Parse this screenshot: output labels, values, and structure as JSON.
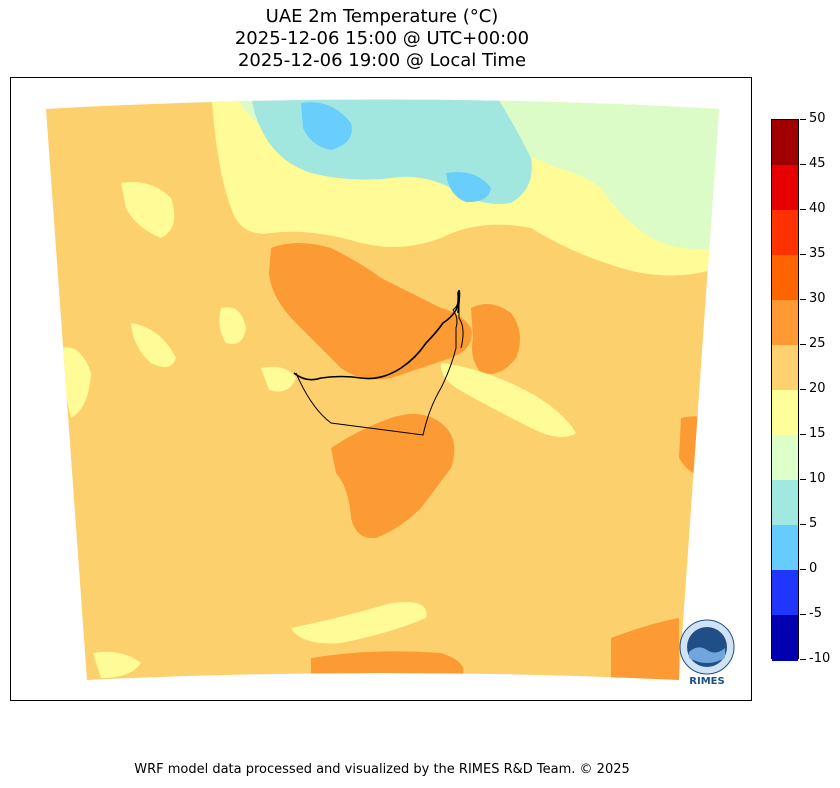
{
  "title": {
    "line1": "UAE 2m Temperature (°C)",
    "line2": "2025-12-06 15:00 @ UTC+00:00",
    "line3": "2025-12-06 19:00 @ Local Time"
  },
  "colorbar": {
    "levels": [
      50,
      45,
      40,
      35,
      30,
      25,
      20,
      15,
      10,
      5,
      0,
      -5,
      -10
    ],
    "labels": [
      "50",
      "45",
      "40",
      "35",
      "30",
      "25",
      "20",
      "15",
      "10",
      "5",
      "0",
      "-5",
      "-10"
    ],
    "colors": [
      "#a00000",
      "#e60000",
      "#ff3200",
      "#ff6400",
      "#ff9933",
      "#ffd070",
      "#ffff99",
      "#ddffc8",
      "#a0e8e0",
      "#66ccff",
      "#2036ff",
      "#0000b0"
    ]
  },
  "map": {
    "colors": {
      "band_20_25": "#fdd06e",
      "band_25_30": "#fc9a33",
      "band_15_20": "#fffb96",
      "band_10_15": "#dcfcc7",
      "band_5_10": "#a1e7df",
      "band_0_5": "#6acefd",
      "border": "#000000"
    }
  },
  "logo": {
    "text": "RIMES",
    "icon": "rimes-logo-icon"
  },
  "footer": "WRF model data processed and visualized by the RIMES R&D Team. © 2025"
}
